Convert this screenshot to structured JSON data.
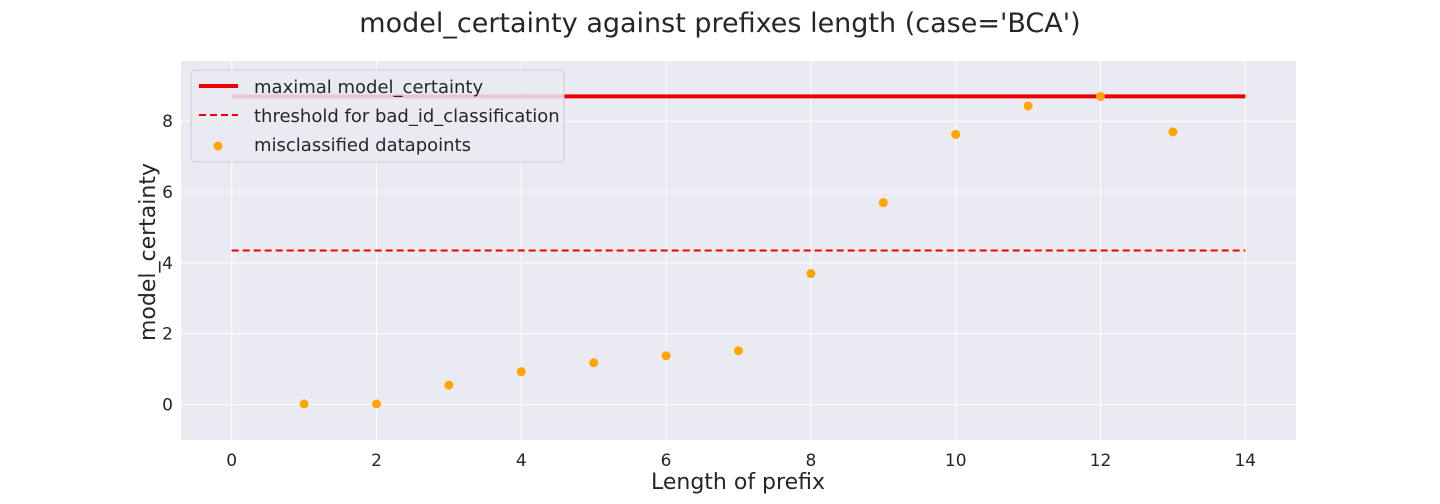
{
  "chart_data": {
    "type": "scatter",
    "title": "model_certainty against prefixes length (case='BCA')",
    "xlabel": "Length of prefix",
    "ylabel": "model_certainty",
    "xlim": [
      -0.7,
      14.7
    ],
    "ylim": [
      -1.0,
      9.7
    ],
    "xticks": [
      0,
      2,
      4,
      6,
      8,
      10,
      12,
      14
    ],
    "yticks": [
      0,
      2,
      4,
      6,
      8
    ],
    "grid": true,
    "legend_position": "top-left",
    "maximal_line": {
      "name": "maximal model_certainty",
      "y": 8.7,
      "x_range": [
        0,
        14
      ],
      "color": "#ee0000",
      "style": "solid"
    },
    "threshold_line": {
      "name": "threshold for bad_id_classification",
      "y": 4.35,
      "x_range": [
        0,
        14
      ],
      "color": "#ee0000",
      "style": "dashed"
    },
    "scatter_series": {
      "name": "misclassified datapoints",
      "color": "#ffa500",
      "x": [
        1,
        2,
        3,
        4,
        5,
        6,
        7,
        8,
        9,
        10,
        11,
        12,
        13
      ],
      "y": [
        0.02,
        0.02,
        0.55,
        0.93,
        1.18,
        1.38,
        1.52,
        3.7,
        5.7,
        7.63,
        8.43,
        8.7,
        7.7
      ]
    }
  }
}
